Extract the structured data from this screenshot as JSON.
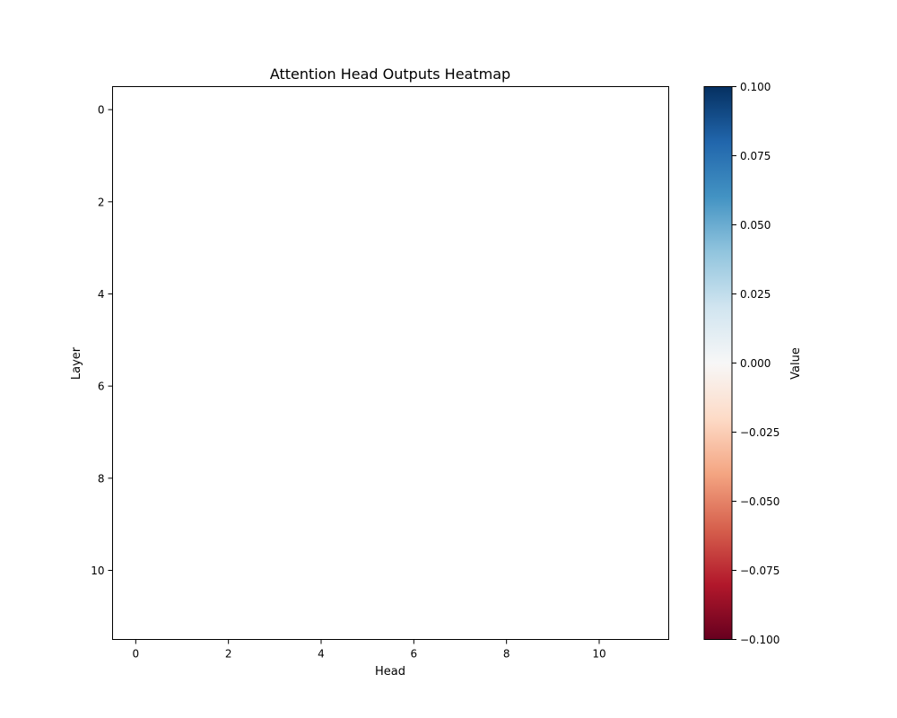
{
  "chart_data": {
    "type": "heatmap",
    "title": "Attention Head Outputs Heatmap",
    "xlabel": "Head",
    "ylabel": "Layer",
    "rows": 12,
    "cols": 12,
    "xlim": [
      -0.5,
      11.5
    ],
    "ylim": [
      11.5,
      -0.5
    ],
    "x_ticks": [
      0,
      2,
      4,
      6,
      8,
      10
    ],
    "x_tick_labels": [
      "0",
      "2",
      "4",
      "6",
      "8",
      "10"
    ],
    "y_ticks": [
      0,
      2,
      4,
      6,
      8,
      10
    ],
    "y_tick_labels": [
      "0",
      "2",
      "4",
      "6",
      "8",
      "10"
    ],
    "values": [
      [
        0,
        0,
        0,
        0,
        0,
        0,
        0,
        0,
        0,
        0,
        0,
        0
      ],
      [
        0,
        0,
        0,
        0,
        0,
        0,
        0,
        0,
        0,
        0,
        0,
        0
      ],
      [
        0,
        0,
        0,
        0,
        0,
        0,
        0,
        0,
        0,
        0,
        0,
        0
      ],
      [
        0,
        0,
        0,
        0,
        0,
        0,
        0,
        0,
        0,
        0,
        0,
        0
      ],
      [
        0,
        0,
        0,
        0,
        0,
        0,
        0,
        0,
        0,
        0,
        0,
        0
      ],
      [
        0,
        0,
        0,
        0,
        0,
        0,
        0,
        0,
        0,
        0,
        0,
        0
      ],
      [
        0,
        0,
        0,
        0,
        0,
        0,
        0,
        0,
        0,
        0,
        0,
        0
      ],
      [
        0,
        0,
        0,
        0,
        0,
        0,
        0,
        0,
        0,
        0,
        0,
        0
      ],
      [
        0,
        0,
        0,
        0,
        0,
        0,
        0,
        0,
        0,
        0,
        0,
        0
      ],
      [
        0,
        0,
        0,
        0,
        0,
        0,
        0,
        0,
        0,
        0,
        0,
        0
      ],
      [
        0,
        0,
        0,
        0,
        0,
        0,
        0,
        0,
        0,
        0,
        0,
        0
      ],
      [
        0,
        0,
        0,
        0,
        0,
        0,
        0,
        0,
        0,
        0,
        0,
        0
      ]
    ],
    "colorbar": {
      "label": "Value",
      "colormap": "RdBu",
      "range": [
        -0.1,
        0.1
      ],
      "ticks": [
        0.1,
        0.075,
        0.05,
        0.025,
        0.0,
        -0.025,
        -0.05,
        -0.075,
        -0.1
      ],
      "tick_labels": [
        "0.100",
        "0.075",
        "0.050",
        "0.025",
        "0.000",
        "−0.025",
        "−0.050",
        "−0.075",
        "−0.100"
      ],
      "colors": [
        "#67001f",
        "#b2182b",
        "#d6604d",
        "#f4a582",
        "#fddbc7",
        "#f7f7f7",
        "#d1e5f0",
        "#92c5de",
        "#4393c3",
        "#2166ac",
        "#053061"
      ]
    }
  }
}
